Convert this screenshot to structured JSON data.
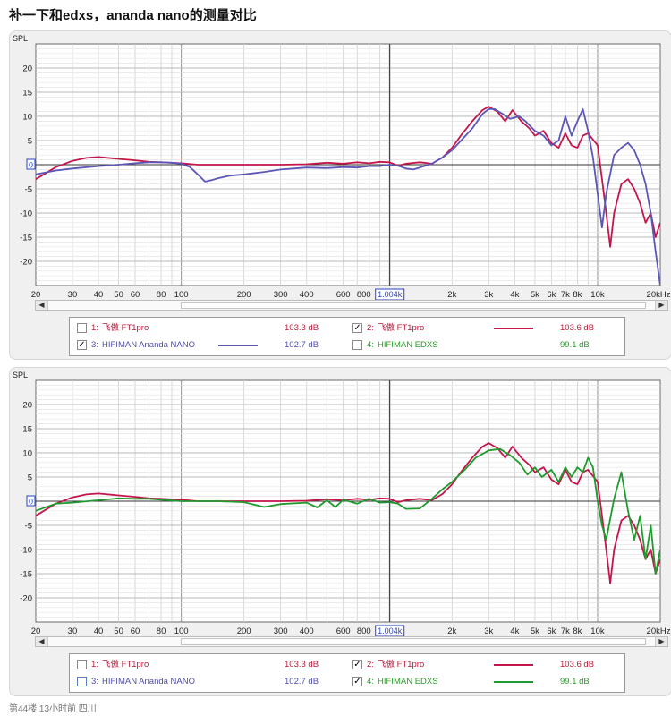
{
  "page_title": "补一下和edxs，ananda nano的测量对比",
  "footer": "第44楼  13小时前  四川",
  "colors": {
    "red": "#c4164b",
    "blue": "#5b56b8",
    "green": "#1f9a2f",
    "label_red": "#b81e3c",
    "label_blue": "#4f4fa8",
    "label_green": "#2a9a2a"
  },
  "chart_data": [
    {
      "type": "line",
      "ylabel": "SPL",
      "x_unit": "Hz",
      "x_scale": "log",
      "xlim": [
        20,
        20000
      ],
      "ylim": [
        -25,
        25
      ],
      "y_ticks": [
        "20",
        "15",
        "10",
        "5",
        "0",
        "-5",
        "-10",
        "-15",
        "-20"
      ],
      "x_ticks": [
        "20",
        "30",
        "40",
        "50",
        "60",
        "80",
        "100",
        "200",
        "300",
        "400",
        "600",
        "800",
        "1.004k",
        "2k",
        "3k",
        "4k",
        "5k",
        "6k",
        "7k",
        "8k",
        "10k",
        "20kHz"
      ],
      "cursor_readout": "1.004k",
      "zero_marker": "0",
      "series": [
        {
          "name": "飞傲 FT1pro",
          "color_key": "red",
          "x": [
            20,
            25,
            30,
            35,
            40,
            50,
            60,
            70,
            80,
            100,
            120,
            150,
            200,
            300,
            400,
            500,
            600,
            700,
            800,
            900,
            1000,
            1100,
            1200,
            1400,
            1600,
            1800,
            2000,
            2200,
            2500,
            2800,
            3000,
            3300,
            3600,
            3900,
            4300,
            4700,
            5000,
            5500,
            6000,
            6500,
            7000,
            7500,
            8000,
            8500,
            9000,
            10000,
            10500,
            11000,
            11500,
            12000,
            13000,
            14000,
            15000,
            16000,
            17000,
            18000,
            19000,
            20000
          ],
          "y": [
            -3,
            -0.5,
            0.8,
            1.4,
            1.6,
            1.2,
            0.9,
            0.6,
            0.5,
            0.3,
            0,
            0,
            0,
            0,
            0.1,
            0.4,
            0.2,
            0.5,
            0.3,
            0.6,
            0.5,
            -0.2,
            0.2,
            0.5,
            0.2,
            1.5,
            3.5,
            6,
            9,
            11.3,
            12,
            11,
            9,
            11.3,
            9,
            7.5,
            6,
            7,
            4.5,
            3.5,
            6.5,
            4,
            3.5,
            6,
            6.5,
            4,
            -3,
            -10,
            -17,
            -10,
            -4,
            -3,
            -5,
            -8,
            -12,
            -10,
            -15,
            -12
          ]
        },
        {
          "name": "HIFIMAN Ananda NANO",
          "color_key": "blue",
          "x": [
            20,
            25,
            30,
            40,
            50,
            60,
            70,
            80,
            90,
            100,
            110,
            120,
            130,
            140,
            150,
            170,
            200,
            250,
            300,
            400,
            500,
            600,
            700,
            800,
            900,
            1000,
            1100,
            1200,
            1300,
            1400,
            1600,
            1800,
            2000,
            2500,
            2800,
            3000,
            3200,
            3500,
            3800,
            4200,
            4500,
            5000,
            5500,
            6000,
            6500,
            7000,
            7500,
            8000,
            8500,
            9000,
            9500,
            10000,
            10500,
            11000,
            12000,
            13000,
            14000,
            15000,
            16000,
            17000,
            18000,
            19000,
            20000
          ],
          "y": [
            -2,
            -1.2,
            -0.8,
            -0.3,
            0,
            0.3,
            0.5,
            0.5,
            0.4,
            0.2,
            -0.5,
            -2,
            -3.5,
            -3.2,
            -2.8,
            -2.3,
            -2,
            -1.5,
            -1,
            -0.6,
            -0.7,
            -0.5,
            -0.6,
            -0.3,
            -0.3,
            0,
            -0.2,
            -0.8,
            -1,
            -0.6,
            0.2,
            1.5,
            3,
            7.5,
            10.5,
            11.5,
            11.5,
            10.5,
            9.5,
            10,
            9,
            7,
            6,
            4,
            5,
            10,
            6,
            9,
            11.5,
            7,
            1.5,
            -6,
            -13,
            -6,
            2,
            3.5,
            4.5,
            3,
            0,
            -4,
            -10,
            -18,
            -25
          ]
        }
      ],
      "legend": [
        {
          "index": "1:",
          "name": "飞傲 FT1pro",
          "value": "103.3 dB",
          "checked": false,
          "color_key": "label_red",
          "show_line": false,
          "cb_style": "gray"
        },
        {
          "index": "2:",
          "name": "飞傲 FT1pro",
          "value": "103.6 dB",
          "checked": true,
          "color_key": "label_red",
          "show_line": true,
          "line_key": "red",
          "cb_style": "gray"
        },
        {
          "index": "3:",
          "name": "HIFIMAN Ananda NANO",
          "value": "102.7 dB",
          "checked": true,
          "color_key": "label_blue",
          "show_line": true,
          "line_key": "blue",
          "cb_style": "gray"
        },
        {
          "index": "4:",
          "name": "HIFIMAN EDXS",
          "value": "99.1 dB",
          "checked": false,
          "color_key": "label_green",
          "show_line": false,
          "cb_style": "gray"
        }
      ]
    },
    {
      "type": "line",
      "ylabel": "SPL",
      "x_unit": "Hz",
      "x_scale": "log",
      "xlim": [
        20,
        20000
      ],
      "ylim": [
        -25,
        25
      ],
      "y_ticks": [
        "20",
        "15",
        "10",
        "5",
        "0",
        "-5",
        "-10",
        "-15",
        "-20"
      ],
      "x_ticks": [
        "20",
        "30",
        "40",
        "50",
        "60",
        "80",
        "100",
        "200",
        "300",
        "400",
        "600",
        "800",
        "1.004k",
        "2k",
        "3k",
        "4k",
        "5k",
        "6k",
        "7k",
        "8k",
        "10k",
        "20kHz"
      ],
      "cursor_readout": "1.004k",
      "zero_marker": "0",
      "series": [
        {
          "name": "飞傲 FT1pro",
          "color_key": "red",
          "x": [
            20,
            25,
            30,
            35,
            40,
            50,
            60,
            70,
            80,
            100,
            120,
            150,
            200,
            300,
            400,
            500,
            600,
            700,
            800,
            900,
            1000,
            1100,
            1200,
            1400,
            1600,
            1800,
            2000,
            2200,
            2500,
            2800,
            3000,
            3300,
            3600,
            3900,
            4300,
            4700,
            5000,
            5500,
            6000,
            6500,
            7000,
            7500,
            8000,
            8500,
            9000,
            10000,
            10500,
            11000,
            11500,
            12000,
            13000,
            14000,
            15000,
            16000,
            17000,
            18000,
            19000,
            20000
          ],
          "y": [
            -3,
            -0.5,
            0.8,
            1.4,
            1.6,
            1.2,
            0.9,
            0.6,
            0.5,
            0.3,
            0,
            0,
            0,
            0,
            0.1,
            0.4,
            0.2,
            0.5,
            0.3,
            0.6,
            0.5,
            -0.2,
            0.2,
            0.5,
            0.2,
            1.5,
            3.5,
            6,
            9,
            11.3,
            12,
            11,
            9,
            11.3,
            9,
            7.5,
            6,
            7,
            4.5,
            3.5,
            6.5,
            4,
            3.5,
            6,
            6.5,
            4,
            -3,
            -10,
            -17,
            -10,
            -4,
            -3,
            -5,
            -8,
            -12,
            -10,
            -15,
            -12
          ]
        },
        {
          "name": "HIFIMAN EDXS",
          "color_key": "green",
          "x": [
            20,
            25,
            30,
            40,
            50,
            60,
            70,
            80,
            100,
            150,
            200,
            250,
            300,
            400,
            450,
            500,
            550,
            600,
            700,
            800,
            900,
            1000,
            1100,
            1200,
            1400,
            1600,
            1800,
            2000,
            2300,
            2600,
            3000,
            3400,
            3800,
            4200,
            4600,
            5000,
            5400,
            6000,
            6500,
            7000,
            7500,
            8000,
            8500,
            9000,
            9500,
            10000,
            10500,
            11000,
            12000,
            13000,
            14000,
            15000,
            16000,
            17000,
            18000,
            19000,
            20000
          ],
          "y": [
            -2,
            -0.5,
            -0.3,
            0.2,
            0.6,
            0.5,
            0.5,
            0.3,
            0,
            0,
            -0.2,
            -1.2,
            -0.6,
            -0.3,
            -1.3,
            0.2,
            -1.2,
            0.3,
            -0.5,
            0.5,
            -0.3,
            -0.2,
            -0.5,
            -1.6,
            -1.5,
            0.5,
            2.5,
            4,
            6.5,
            9,
            10.5,
            10.8,
            9.5,
            8,
            5.5,
            7,
            5,
            6.5,
            4,
            7,
            5,
            7,
            6,
            9,
            7,
            0,
            -5,
            -8,
            0.5,
            6,
            -2,
            -8,
            -3,
            -12,
            -5,
            -15,
            -10
          ]
        }
      ],
      "legend": [
        {
          "index": "1:",
          "name": "飞傲 FT1pro",
          "value": "103.3 dB",
          "checked": false,
          "color_key": "label_red",
          "show_line": false,
          "cb_style": "gray"
        },
        {
          "index": "2:",
          "name": "飞傲 FT1pro",
          "value": "103.6 dB",
          "checked": true,
          "color_key": "label_red",
          "show_line": true,
          "line_key": "red",
          "cb_style": "gray"
        },
        {
          "index": "3:",
          "name": "HIFIMAN Ananda NANO",
          "value": "102.7 dB",
          "checked": false,
          "color_key": "label_blue",
          "show_line": false,
          "cb_style": "blue"
        },
        {
          "index": "4:",
          "name": "HIFIMAN EDXS",
          "value": "99.1 dB",
          "checked": true,
          "color_key": "label_green",
          "show_line": true,
          "line_key": "green",
          "cb_style": "gray"
        }
      ]
    }
  ]
}
